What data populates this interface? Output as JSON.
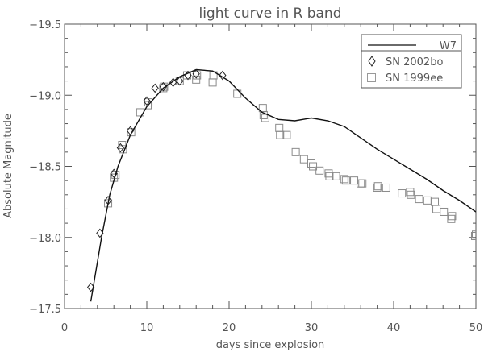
{
  "chart_data": {
    "type": "scatter",
    "title": "light curve in R band",
    "xlabel": "days since explosion",
    "ylabel": "Absolute Magnitude",
    "xlim": [
      0,
      50
    ],
    "ylim": [
      -17.5,
      -19.5
    ],
    "y_inverted": true,
    "x_ticks": [
      0,
      10,
      20,
      30,
      40,
      50
    ],
    "y_ticks": [
      -19.5,
      -19.0,
      -18.5,
      -18.0,
      -17.5
    ],
    "y_tick_labels": [
      "−19.5",
      "−19.0",
      "−18.5",
      "−18.0",
      "−17.5"
    ],
    "grid": false,
    "legend_position": "top-right",
    "series": [
      {
        "name": "W7",
        "type": "line",
        "x": [
          3.2,
          4.5,
          5.5,
          6.5,
          8,
          10,
          12,
          14,
          16,
          18,
          20,
          22,
          24,
          26,
          28,
          30,
          32,
          34,
          36,
          38,
          40,
          42,
          44,
          46,
          48,
          50
        ],
        "y": [
          -17.55,
          -18.0,
          -18.3,
          -18.5,
          -18.72,
          -18.92,
          -19.05,
          -19.13,
          -19.18,
          -19.17,
          -19.1,
          -18.98,
          -18.88,
          -18.83,
          -18.82,
          -18.84,
          -18.82,
          -18.78,
          -18.7,
          -18.62,
          -18.55,
          -18.48,
          -18.41,
          -18.33,
          -18.26,
          -18.18
        ]
      },
      {
        "name": "SN 2002bo",
        "type": "scatter",
        "marker": "diamond",
        "x": [
          3.2,
          4.3,
          5.3,
          6.0,
          6.8,
          8.0,
          10.0,
          11.0,
          12.0,
          13.2,
          14.0,
          15.0,
          16.0,
          19.2
        ],
        "y": [
          -17.65,
          -18.03,
          -18.26,
          -18.45,
          -18.63,
          -18.75,
          -18.96,
          -19.05,
          -19.06,
          -19.09,
          -19.1,
          -19.14,
          -19.15,
          -19.14
        ]
      },
      {
        "name": "SN 1999ee",
        "type": "scatter",
        "marker": "square",
        "x": [
          5.3,
          6.0,
          6.2,
          7.1,
          7.0,
          8.1,
          9.2,
          10.2,
          10.1,
          12.0,
          12.1,
          14.0,
          14.9,
          16.1,
          16.0,
          18.1,
          18.0,
          21.0,
          24.1,
          24.2,
          24.4,
          26.1,
          26.2,
          27.0,
          28.1,
          29.1,
          30.0,
          30.2,
          31.0,
          32.1,
          32.2,
          33.0,
          34.2,
          34.0,
          35.2,
          36.2,
          36.0,
          38.1,
          38.0,
          39.1,
          41.0,
          42.1,
          42.0,
          43.1,
          44.1,
          45.0,
          45.2,
          46.1,
          47.1,
          47.0,
          50.0,
          49.9,
          51.0
        ],
        "y": [
          -18.24,
          -18.42,
          -18.44,
          -18.62,
          -18.65,
          -18.74,
          -18.88,
          -18.95,
          -18.93,
          -19.05,
          -19.06,
          -19.1,
          -19.14,
          -19.14,
          -19.11,
          -19.14,
          -19.09,
          -19.01,
          -18.91,
          -18.86,
          -18.84,
          -18.77,
          -18.72,
          -18.72,
          -18.6,
          -18.55,
          -18.52,
          -18.5,
          -18.47,
          -18.45,
          -18.43,
          -18.43,
          -18.4,
          -18.41,
          -18.4,
          -18.38,
          -18.38,
          -18.36,
          -18.35,
          -18.35,
          -18.31,
          -18.3,
          -18.32,
          -18.27,
          -18.26,
          -18.25,
          -18.2,
          -18.18,
          -18.15,
          -18.13,
          -18.02,
          -18.01,
          -17.95
        ]
      }
    ]
  }
}
